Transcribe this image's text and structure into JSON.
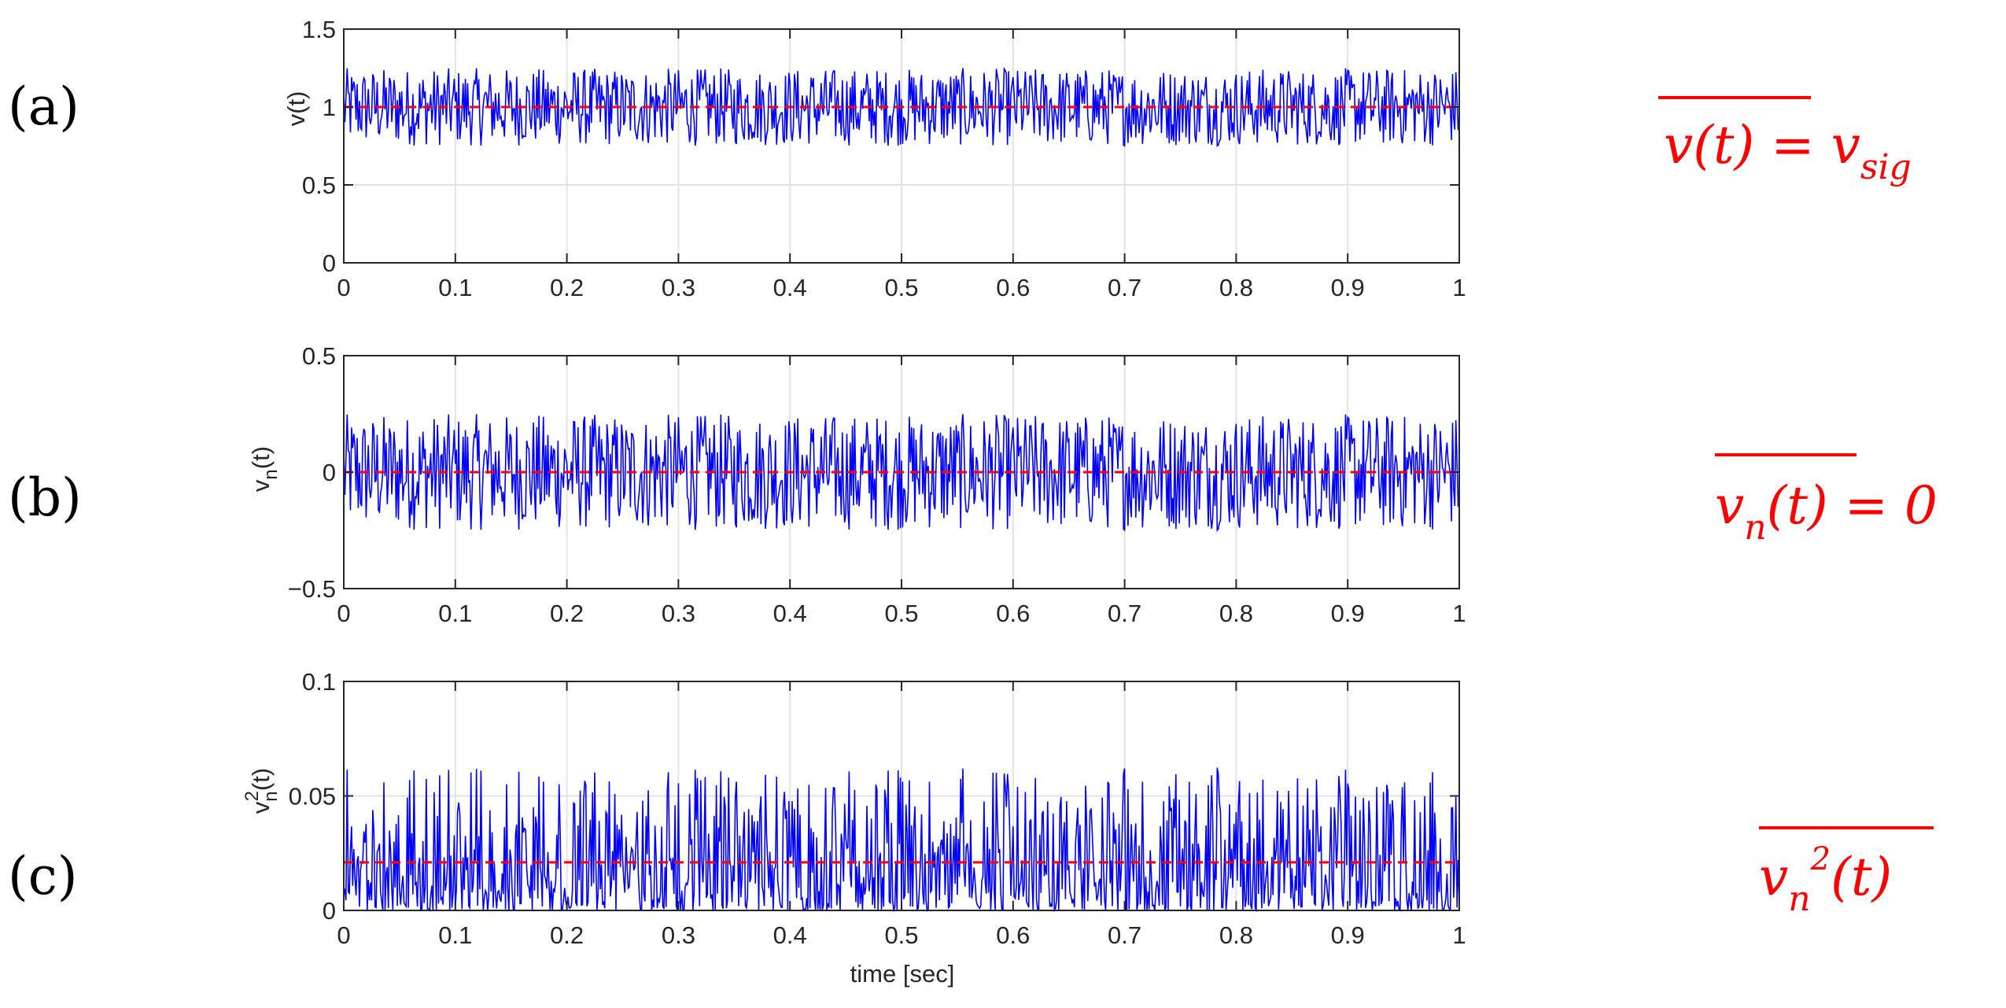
{
  "chart_data": [
    {
      "type": "line",
      "panel_label": "(a)",
      "ylabel": "v(t)",
      "ylabel_sub": "",
      "ylabel_sup": "",
      "xlabel": "",
      "xlim": [
        0,
        1
      ],
      "ylim": [
        0,
        1.5
      ],
      "x_ticks": [
        "0",
        "0.1",
        "0.2",
        "0.3",
        "0.4",
        "0.5",
        "0.6",
        "0.7",
        "0.8",
        "0.9",
        "1"
      ],
      "y_ticks": [
        "0",
        "0.5",
        "1",
        "1.5"
      ],
      "y_tick_values": [
        0,
        0.5,
        1,
        1.5
      ],
      "grid": true,
      "signal": {
        "kind": "noise",
        "mean": 1.0,
        "amplitude": 0.25,
        "samples": 1000,
        "color": "#0000ff"
      },
      "mean_line": {
        "value": 1.0,
        "color": "#ff0000",
        "style": "dashed"
      },
      "annotation": {
        "main": "v(t) = v",
        "sub": "sig",
        "sup": "",
        "tail": "",
        "overline_text": "v(t)"
      }
    },
    {
      "type": "line",
      "panel_label": "(b)",
      "ylabel": "v",
      "ylabel_sub": "n",
      "ylabel_sup": "",
      "ylabel_tail": "(t)",
      "xlabel": "",
      "xlim": [
        0,
        1
      ],
      "ylim": [
        -0.5,
        0.5
      ],
      "x_ticks": [
        "0",
        "0.1",
        "0.2",
        "0.3",
        "0.4",
        "0.5",
        "0.6",
        "0.7",
        "0.8",
        "0.9",
        "1"
      ],
      "y_ticks": [
        "−0.5",
        "0",
        "0.5"
      ],
      "y_tick_values": [
        -0.5,
        0,
        0.5
      ],
      "grid": true,
      "signal": {
        "kind": "noise",
        "mean": 0.0,
        "amplitude": 0.25,
        "samples": 1000,
        "color": "#0000ff"
      },
      "mean_line": {
        "value": 0.0,
        "color": "#ff0000",
        "style": "dashed"
      },
      "annotation": {
        "main": "v",
        "sub": "n",
        "sup": "",
        "tail": "(t) = 0",
        "overline_text": "vn(t)"
      }
    },
    {
      "type": "line",
      "panel_label": "(c)",
      "ylabel": "v",
      "ylabel_sub": "n",
      "ylabel_sup": "2",
      "ylabel_tail": "(t)",
      "xlabel": "time [sec]",
      "xlim": [
        0,
        1
      ],
      "ylim": [
        0,
        0.1
      ],
      "x_ticks": [
        "0",
        "0.1",
        "0.2",
        "0.3",
        "0.4",
        "0.5",
        "0.6",
        "0.7",
        "0.8",
        "0.9",
        "1"
      ],
      "y_ticks": [
        "0",
        "0.05",
        "0.1"
      ],
      "y_tick_values": [
        0,
        0.05,
        0.1
      ],
      "grid": true,
      "signal": {
        "kind": "squared-noise",
        "mean": 0.0,
        "amplitude": 0.25,
        "samples": 1000,
        "color": "#0000ff"
      },
      "mean_line": {
        "value": 0.021,
        "color": "#ff0000",
        "style": "dashed"
      },
      "annotation": {
        "main": "v",
        "sub": "n",
        "sup": "2",
        "tail": "(t)",
        "overline_text": "vn2(t)"
      }
    }
  ]
}
